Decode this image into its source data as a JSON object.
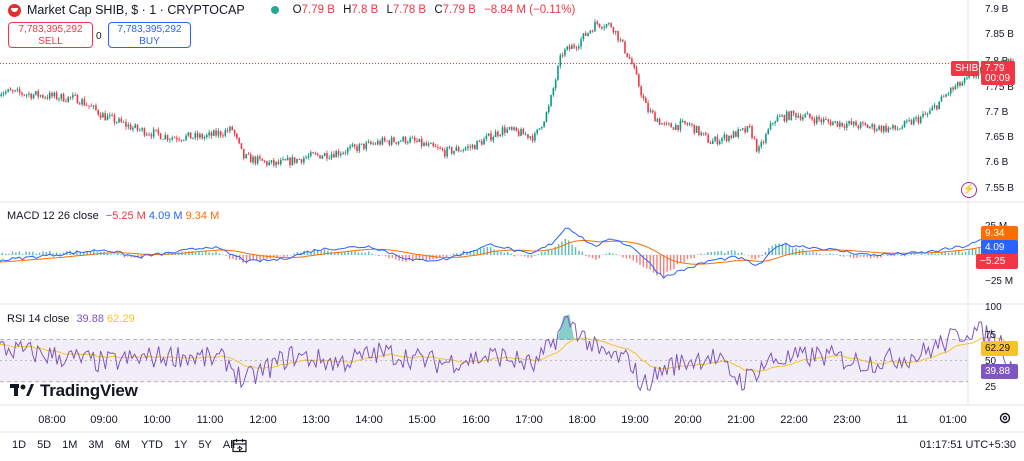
{
  "header": {
    "title": "Market Cap SHIB, $ · 1 · CRYPTOCAP",
    "ohlc": [
      {
        "k": "O",
        "v": "7.79 B"
      },
      {
        "k": "H",
        "v": "7.8 B"
      },
      {
        "k": "L",
        "v": "7.78 B"
      },
      {
        "k": "C",
        "v": "7.79 B"
      },
      {
        "k": "",
        "v": "−8.84 M (−0.11%)"
      }
    ]
  },
  "trade": {
    "sell_value": "7,783,395,292",
    "sell_label": "SELL",
    "spread": "0",
    "buy_value": "7,783,395,292",
    "buy_label": "BUY"
  },
  "macd_legend": {
    "label": "MACD 12 26 close",
    "hist": "−5.25 M",
    "macd": "4.09 M",
    "signal": "9.34 M"
  },
  "rsi_legend": {
    "label": "RSI 14 close",
    "rsi": "39.88",
    "ma": "62.29"
  },
  "price_tags": {
    "symbol": "SHIB",
    "last": "7.79 B",
    "countdown": "00:09",
    "macd_signal": "9.34 M",
    "macd_line": "4.09 M",
    "macd_hist": "−5.25 M",
    "rsi_ma": "62.29",
    "rsi": "39.88"
  },
  "colors": {
    "up": "#089981",
    "down": "#f23645",
    "macd": "#2962ff",
    "signal": "#ff6d00",
    "rsi": "#7e57c2",
    "rsi_ma": "#f7c325"
  },
  "branding": {
    "name": "TradingView"
  },
  "timeframes": [
    "1D",
    "5D",
    "1M",
    "3M",
    "6M",
    "YTD",
    "1Y",
    "5Y",
    "All"
  ],
  "clock": "01:17:51 UTC+5:30",
  "chart_data": {
    "type": "candlestick",
    "interval": "1 minute",
    "x_ticks": [
      "08:00",
      "09:00",
      "10:00",
      "11:00",
      "12:00",
      "13:00",
      "14:00",
      "15:00",
      "16:00",
      "17:00",
      "18:00",
      "19:00",
      "20:00",
      "21:00",
      "22:00",
      "23:00",
      "11",
      "01:00"
    ],
    "price_axis": {
      "unit": "B",
      "ticks": [
        7.55,
        7.6,
        7.65,
        7.7,
        7.75,
        7.8,
        7.85,
        7.9
      ],
      "tick_labels": [
        "7.55 B",
        "7.6 B",
        "7.65 B",
        "7.7 B",
        "7.75 B",
        "7.8 B",
        "7.85 B",
        "7.9 B"
      ]
    },
    "price_path": [
      [
        0,
        7.725
      ],
      [
        0.5,
        7.72
      ],
      [
        1,
        7.685
      ],
      [
        1.6,
        7.66
      ],
      [
        2.2,
        7.645
      ],
      [
        2.9,
        7.645
      ],
      [
        3.4,
        7.66
      ],
      [
        3.6,
        7.605
      ],
      [
        4.2,
        7.59
      ],
      [
        4.8,
        7.605
      ],
      [
        5.4,
        7.615
      ],
      [
        6.2,
        7.635
      ],
      [
        6.7,
        7.64
      ],
      [
        7.4,
        7.615
      ],
      [
        7.9,
        7.625
      ],
      [
        8.5,
        7.66
      ],
      [
        9.1,
        7.645
      ],
      [
        9.35,
        7.7
      ],
      [
        9.6,
        7.81
      ],
      [
        9.9,
        7.83
      ],
      [
        10.25,
        7.87
      ],
      [
        10.55,
        7.865
      ],
      [
        10.9,
        7.795
      ],
      [
        11.2,
        7.7
      ],
      [
        11.55,
        7.665
      ],
      [
        12,
        7.67
      ],
      [
        12.4,
        7.635
      ],
      [
        13.15,
        7.66
      ],
      [
        13.3,
        7.615
      ],
      [
        13.6,
        7.68
      ],
      [
        14,
        7.69
      ],
      [
        14.6,
        7.675
      ],
      [
        15.4,
        7.665
      ],
      [
        15.9,
        7.66
      ],
      [
        16.5,
        7.69
      ],
      [
        16.9,
        7.735
      ],
      [
        17.5,
        7.775
      ],
      [
        17.95,
        7.79
      ],
      [
        18.1,
        7.79
      ]
    ],
    "macd_axis": {
      "ticks": [
        "25 M",
        "−25 M"
      ]
    },
    "macd_path": [
      [
        0,
        0
      ],
      [
        1,
        5
      ],
      [
        1.6,
        -2
      ],
      [
        2.4,
        3
      ],
      [
        3,
        8
      ],
      [
        3.7,
        -6
      ],
      [
        4.3,
        -4
      ],
      [
        5,
        5
      ],
      [
        6,
        8
      ],
      [
        6.8,
        -5
      ],
      [
        7.4,
        -4
      ],
      [
        8.3,
        10
      ],
      [
        9,
        0
      ],
      [
        9.4,
        10
      ],
      [
        9.7,
        26
      ],
      [
        10.2,
        8
      ],
      [
        10.6,
        15
      ],
      [
        11,
        5
      ],
      [
        11.5,
        -20
      ],
      [
        12.4,
        -5
      ],
      [
        12.9,
        -2
      ],
      [
        13.3,
        -10
      ],
      [
        13.7,
        10
      ],
      [
        14.5,
        6
      ],
      [
        15.4,
        0
      ],
      [
        16.4,
        2
      ],
      [
        17.2,
        8
      ],
      [
        17.6,
        15
      ],
      [
        17.85,
        12
      ],
      [
        18.1,
        4.09
      ]
    ],
    "signal_final": 9.34,
    "histogram_final": -5.25,
    "rsi_axis": {
      "ticks": [
        25,
        50,
        75,
        100
      ],
      "band": [
        30,
        70
      ]
    },
    "rsi_path": [
      [
        0,
        55
      ],
      [
        1,
        48
      ],
      [
        1.6,
        52
      ],
      [
        2.4,
        55
      ],
      [
        3.3,
        50
      ],
      [
        3.6,
        30
      ],
      [
        4.5,
        55
      ],
      [
        5.4,
        48
      ],
      [
        6.2,
        58
      ],
      [
        7.3,
        48
      ],
      [
        8.4,
        55
      ],
      [
        9.1,
        45
      ],
      [
        9.5,
        72
      ],
      [
        9.7,
        90
      ],
      [
        10.3,
        57
      ],
      [
        10.9,
        50
      ],
      [
        11.1,
        25
      ],
      [
        11.6,
        45
      ],
      [
        12.4,
        55
      ],
      [
        13,
        30
      ],
      [
        13.5,
        50
      ],
      [
        14.5,
        55
      ],
      [
        15.3,
        48
      ],
      [
        16.3,
        55
      ],
      [
        17.3,
        80
      ],
      [
        17.85,
        70
      ],
      [
        18.1,
        39.88
      ]
    ],
    "rsi_ma_final": 62.29
  }
}
